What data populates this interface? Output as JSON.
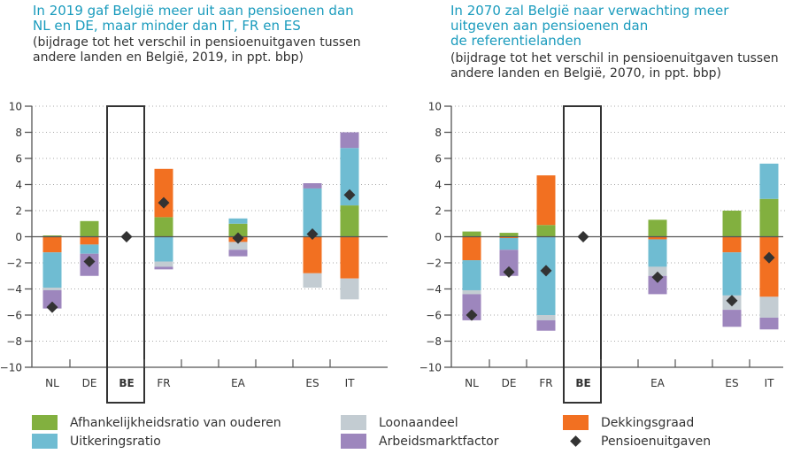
{
  "colors": {
    "afhankelijkheidsratio": "#82b03f",
    "uitkeringsratio": "#6fbcd2",
    "loonaandeel": "#c3ccd2",
    "arbeidsmarktfactor": "#9d86bd",
    "dekkingsgraad": "#f27021",
    "pensioenuitgaven": "#333333",
    "title": "#1a9bbd"
  },
  "legend": {
    "items": [
      {
        "key": "afhankelijkheidsratio",
        "label": "Afhankelijkheidsratio van ouderen",
        "type": "box"
      },
      {
        "key": "uitkeringsratio",
        "label": "Uitkeringsratio",
        "type": "box"
      },
      {
        "key": "loonaandeel",
        "label": "Loonaandeel",
        "type": "box"
      },
      {
        "key": "arbeidsmarktfactor",
        "label": "Arbeidsmarktfactor",
        "type": "box"
      },
      {
        "key": "dekkingsgraad",
        "label": "Dekkingsgraad",
        "type": "box"
      },
      {
        "key": "pensioenuitgaven",
        "label": "Pensioenuitgaven",
        "type": "diamond"
      }
    ]
  },
  "chart_data": [
    {
      "type": "bar",
      "stacked": true,
      "title": "In 2019 gaf België meer uit aan pensioenen dan NL en DE, maar minder dan IT, FR en ES",
      "title_lines": [
        "In 2019 gaf België meer uit aan pensioenen dan",
        "NL en DE, maar minder dan IT, FR en ES"
      ],
      "subtitle_lines": [
        "(bijdrage tot het verschil in pensioenuitgaven tussen",
        "andere landen en België, 2019, in ppt. bbp)"
      ],
      "xlabel": "",
      "ylabel": "",
      "ylim": [
        -10,
        10
      ],
      "yticks": [
        10,
        8,
        6,
        4,
        2,
        0,
        -2,
        -4,
        -6,
        -8,
        -10
      ],
      "ytick_labels": [
        "10",
        "8",
        "6",
        "4",
        "2",
        "0",
        "−2",
        "−4",
        "−6",
        "−8",
        "−10"
      ],
      "grid": true,
      "highlight": "BE",
      "categories": [
        "NL",
        "DE",
        "BE",
        "FR",
        "",
        "EA",
        "",
        "ES",
        "IT"
      ],
      "series": [
        {
          "name": "Afhankelijkheidsratio van ouderen",
          "key": "afhankelijkheidsratio",
          "values": [
            0.1,
            1.2,
            0,
            1.5,
            null,
            1.0,
            null,
            0.05,
            2.4
          ]
        },
        {
          "name": "Uitkeringsratio",
          "key": "uitkeringsratio",
          "values": [
            -2.7,
            -0.7,
            0,
            -1.9,
            null,
            0.4,
            null,
            3.65,
            4.4
          ]
        },
        {
          "name": "Loonaandeel",
          "key": "loonaandeel",
          "values": [
            -0.2,
            0,
            0,
            -0.4,
            null,
            -0.6,
            null,
            -1.1,
            -1.6
          ]
        },
        {
          "name": "Arbeidsmarktfactor",
          "key": "arbeidsmarktfactor",
          "values": [
            -1.4,
            -1.7,
            0,
            -0.2,
            null,
            -0.5,
            null,
            0.4,
            1.2
          ]
        },
        {
          "name": "Dekkingsgraad",
          "key": "dekkingsgraad",
          "values": [
            -1.2,
            -0.6,
            0,
            3.7,
            null,
            -0.4,
            null,
            -2.8,
            -3.2
          ]
        }
      ],
      "markers": {
        "name": "Pensioenuitgaven",
        "values": [
          -5.4,
          -1.9,
          0,
          2.6,
          null,
          -0.1,
          null,
          0.2,
          3.2
        ]
      }
    },
    {
      "type": "bar",
      "stacked": true,
      "title": "In 2070 zal België naar verwachting meer uitgeven aan pensioenen dan de referentielanden",
      "title_lines": [
        "In 2070 zal België naar verwachting meer",
        "uitgeven aan pensioenen dan",
        "de referentielanden"
      ],
      "subtitle_lines": [
        "(bijdrage tot het verschil in pensioenuitgaven tussen",
        "andere landen en België, 2070, in ppt. bbp)"
      ],
      "xlabel": "",
      "ylabel": "",
      "ylim": [
        -10,
        10
      ],
      "yticks": [
        10,
        8,
        6,
        4,
        2,
        0,
        -2,
        -4,
        -6,
        -8,
        -10
      ],
      "ytick_labels": [
        "10",
        "8",
        "6",
        "4",
        "2",
        "0",
        "−2",
        "−4",
        "−6",
        "−8",
        "−10"
      ],
      "grid": true,
      "highlight": "BE",
      "categories": [
        "NL",
        "DE",
        "FR",
        "BE",
        "",
        "EA",
        "",
        "ES",
        "IT"
      ],
      "series": [
        {
          "name": "Afhankelijkheidsratio van ouderen",
          "key": "afhankelijkheidsratio",
          "values": [
            0.4,
            0.3,
            0.9,
            0,
            null,
            1.3,
            null,
            2.0,
            2.9
          ]
        },
        {
          "name": "Uitkeringsratio",
          "key": "uitkeringsratio",
          "values": [
            -2.3,
            -0.9,
            -6.0,
            0,
            null,
            -2.1,
            null,
            -3.3,
            2.7
          ]
        },
        {
          "name": "Loonaandeel",
          "key": "loonaandeel",
          "values": [
            -0.3,
            0,
            -0.4,
            0,
            null,
            -0.7,
            null,
            -1.1,
            -1.6
          ]
        },
        {
          "name": "Arbeidsmarktfactor",
          "key": "arbeidsmarktfactor",
          "values": [
            -2.0,
            -2.0,
            -0.8,
            0,
            null,
            -1.4,
            null,
            -1.3,
            -0.9
          ]
        },
        {
          "name": "Dekkingsgraad",
          "key": "dekkingsgraad",
          "values": [
            -1.8,
            -0.1,
            3.8,
            0,
            null,
            -0.2,
            null,
            -1.2,
            -4.6
          ]
        }
      ],
      "markers": {
        "name": "Pensioenuitgaven",
        "values": [
          -6.0,
          -2.7,
          -2.6,
          0,
          null,
          -3.1,
          null,
          -4.9,
          -1.6
        ]
      }
    }
  ]
}
